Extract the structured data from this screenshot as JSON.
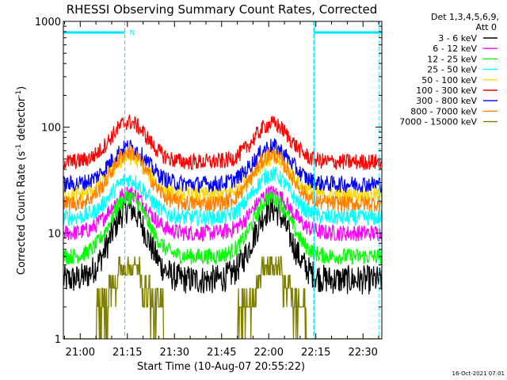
{
  "chart_data": {
    "type": "line",
    "title": "RHESSI Observing Summary Count Rates, Corrected",
    "xlabel": "Start Time (10-Aug-07 20:55:22)",
    "ylabel_parts": {
      "pre": "Corrected Count Rate (s",
      "exp1": "-1",
      "mid": " detector",
      "exp2": "-1",
      "post": ")"
    },
    "yscale": "log",
    "ylim": [
      1,
      1000
    ],
    "xlim_minutes": [
      -5.37,
      96.0
    ],
    "x_tick_labels": [
      "21:00",
      "21:15",
      "21:30",
      "21:45",
      "22:00",
      "22:15",
      "22:30"
    ],
    "x_tick_minutes": [
      0,
      15,
      30,
      45,
      60,
      75,
      90
    ],
    "y_tick_labels": [
      "1",
      "10",
      "100",
      "1000"
    ],
    "y_tick_values": [
      1,
      10,
      100,
      1000
    ],
    "legend_header": [
      "Det 1,3,4,5,6,9,",
      "Att 0"
    ],
    "legend_position": "right",
    "series": [
      {
        "name": "3 - 6 keV",
        "color": "#000000",
        "baseline": 3.6,
        "peaks": [
          17,
          17
        ]
      },
      {
        "name": "6 - 12 keV",
        "color": "#ff00ff",
        "baseline": 10,
        "peaks": [
          24,
          24
        ]
      },
      {
        "name": "12 - 25 keV",
        "color": "#00ff00",
        "baseline": 6,
        "peaks": [
          22,
          22
        ]
      },
      {
        "name": "25 - 50 keV",
        "color": "#00ffff",
        "baseline": 14,
        "peaks": [
          32,
          36
        ]
      },
      {
        "name": "50 - 100 keV",
        "color": "#ffd700",
        "baseline": 23,
        "peaks": [
          52,
          50
        ]
      },
      {
        "name": "100 - 300 keV",
        "color": "#ff0000",
        "baseline": 47,
        "peaks": [
          112,
          108
        ]
      },
      {
        "name": "300 - 800 keV",
        "color": "#0000ff",
        "baseline": 29,
        "peaks": [
          65,
          66
        ]
      },
      {
        "name": "800 - 7000 keV",
        "color": "#ff7f00",
        "baseline": 19,
        "peaks": [
          58,
          55
        ]
      },
      {
        "name": "7000 - 15000 keV",
        "color": "#808000",
        "baseline": 1,
        "peaks": [
          4.6,
          4.5
        ]
      }
    ],
    "annotations": {
      "night_bar_color": "#00e5ff",
      "night_intervals_minutes": [
        [
          -5.37,
          14.2
        ],
        [
          74.3,
          96.0
        ]
      ],
      "night_marker": "N",
      "dashed_lines_minutes": [
        14.2,
        74.3,
        95.2
      ],
      "solid_line_minutes": [
        74.3
      ]
    }
  },
  "footer": {
    "timestamp": "16-Oct-2021 07:01"
  }
}
